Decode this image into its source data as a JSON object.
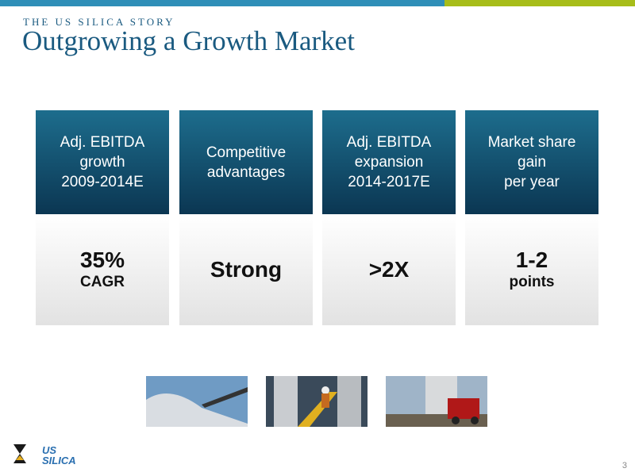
{
  "header": {
    "kicker": "THE US SILICA STORY",
    "title": "Outgrowing a Growth Market"
  },
  "cards": [
    {
      "heading": [
        "Adj. EBITDA",
        "growth",
        "2009-2014E"
      ],
      "value": "35%",
      "sub": "CAGR"
    },
    {
      "heading": [
        "Competitive",
        "advantages"
      ],
      "value": "Strong"
    },
    {
      "heading": [
        "Adj. EBITDA",
        "expansion",
        "2014-2017E"
      ],
      "value": ">2X"
    },
    {
      "heading": [
        "Market share",
        "gain",
        "per year"
      ],
      "value": "1-2",
      "sub": "points"
    }
  ],
  "footer": {
    "logo": [
      "US",
      "SILICA"
    ],
    "page_number": "3"
  }
}
